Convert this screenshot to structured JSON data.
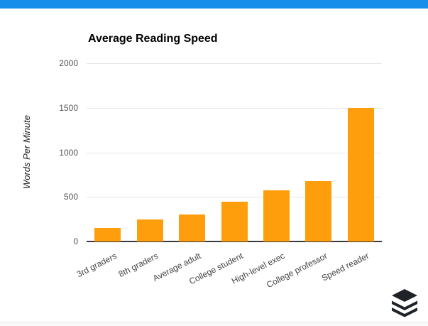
{
  "page": {
    "top_bar_color": "#168eea",
    "background_color": "#ffffff",
    "bottom_rule_color": "#e3e3e3",
    "logo_icon": "buffer-layers-logo",
    "logo_color": "#1f2328"
  },
  "chart_data": {
    "type": "bar",
    "title": "Average Reading Speed",
    "xlabel": "",
    "ylabel": "Words Per Minute",
    "categories": [
      "3rd graders",
      "8th graders",
      "Average adult",
      "College student",
      "High-level exec",
      "College professor",
      "Speed reader"
    ],
    "values": [
      150,
      250,
      300,
      450,
      575,
      675,
      1500
    ],
    "ylim": [
      0,
      2000
    ],
    "yticks": [
      0,
      500,
      1000,
      1500,
      2000
    ],
    "grid": true,
    "legend_position": "none",
    "bar_color": "#fe9e0d",
    "gridline_color": "#e6e6e6",
    "baseline_color": "#3a3a3a",
    "ytick_color": "#555555",
    "xtick_color": "#444444",
    "category_label_angle_deg": -27
  }
}
